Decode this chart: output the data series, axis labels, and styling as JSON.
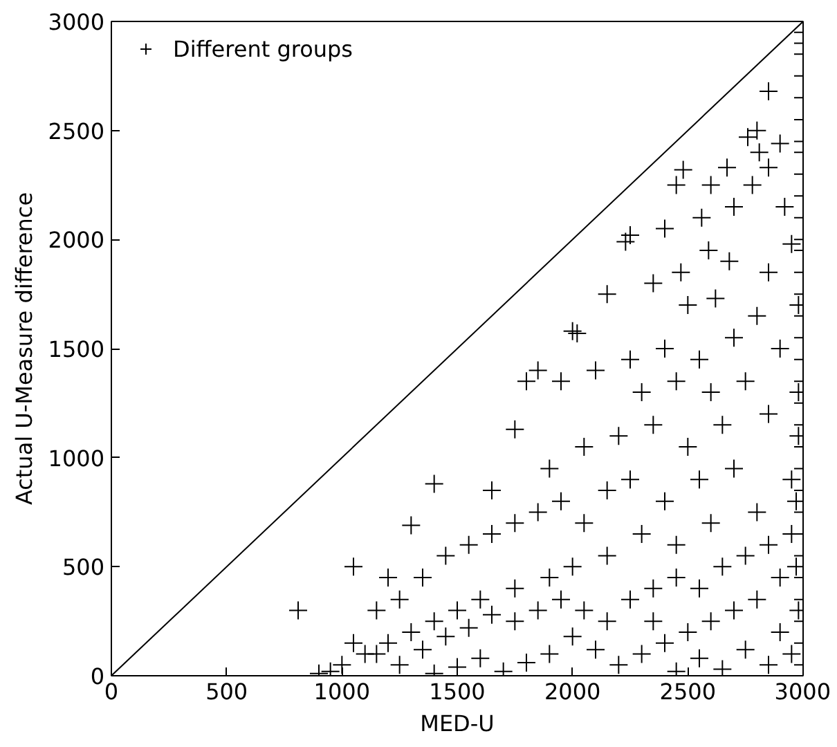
{
  "chart_data": {
    "type": "scatter",
    "xlabel": "MED-U",
    "ylabel": "Actual U-Measure difference",
    "xlim": [
      0,
      3000
    ],
    "ylim": [
      0,
      3000
    ],
    "xticks": [
      0,
      500,
      1000,
      1500,
      2000,
      2500,
      3000
    ],
    "yticks": [
      0,
      500,
      1000,
      1500,
      2000,
      2500,
      3000
    ],
    "grid": false,
    "legend": "top left",
    "series": [
      {
        "name": "Different groups",
        "color": "#000000",
        "marker": "cross",
        "x": [
          3000,
          3000,
          3000,
          3000,
          3000,
          3000,
          3000,
          3000,
          3000,
          3000,
          3000,
          3000,
          3000,
          3000,
          3000,
          3000,
          3000,
          3000,
          3000,
          3000,
          3000,
          3000,
          3000,
          3000,
          3000,
          3000,
          3000,
          3000,
          3000,
          3000,
          3000,
          3000,
          2850,
          2800,
          2760,
          2810,
          2850,
          2900,
          2670,
          2480,
          2600,
          2780,
          2700,
          2250,
          2230,
          2400,
          2450,
          2560,
          2920,
          2950,
          2590,
          2470,
          2680,
          2850,
          2350,
          2500,
          2620,
          2800,
          2150,
          2000,
          2020,
          1750,
          1800,
          1850,
          1950,
          2100,
          2250,
          2400,
          2550,
          2700,
          2900,
          2300,
          2450,
          2600,
          2750,
          1400,
          1300,
          1650,
          1900,
          2050,
          2200,
          2350,
          2500,
          2650,
          2850,
          1050,
          1200,
          1150,
          1250,
          1350,
          1450,
          1550,
          1650,
          1750,
          1850,
          1950,
          2050,
          2150,
          2250,
          2400,
          2550,
          2700,
          2950,
          2800,
          2600,
          2450,
          2300,
          2150,
          2000,
          1900,
          1750,
          1600,
          1500,
          1400,
          1300,
          1200,
          1100,
          1000,
          950,
          900,
          1050,
          1150,
          1250,
          1350,
          1450,
          1550,
          1650,
          1750,
          1850,
          1950,
          2050,
          2150,
          2250,
          2350,
          2450,
          2550,
          2650,
          2750,
          2850,
          2950,
          2900,
          2800,
          2700,
          2600,
          2500,
          2400,
          2300,
          2200,
          2100,
          2000,
          1900,
          1800,
          1700,
          1600,
          1500,
          1400,
          2900,
          2950,
          2850,
          2750,
          2650,
          2550,
          2450,
          2350,
          2980,
          2980,
          2980,
          2970,
          2970,
          2980,
          810
        ],
        "values": [
          2950,
          2900,
          2850,
          2750,
          2650,
          2550,
          2450,
          2400,
          2300,
          2200,
          2100,
          2000,
          1950,
          1850,
          1750,
          1650,
          1550,
          1450,
          1350,
          1250,
          1150,
          1050,
          950,
          850,
          750,
          650,
          550,
          450,
          350,
          250,
          150,
          50,
          2680,
          2500,
          2470,
          2400,
          2330,
          2440,
          2330,
          2320,
          2250,
          2250,
          2150,
          2020,
          1990,
          2050,
          2250,
          2100,
          2150,
          1980,
          1950,
          1850,
          1900,
          1850,
          1800,
          1700,
          1730,
          1650,
          1750,
          1580,
          1570,
          1130,
          1350,
          1400,
          1350,
          1400,
          1450,
          1500,
          1450,
          1550,
          1500,
          1300,
          1350,
          1300,
          1350,
          880,
          690,
          850,
          950,
          1050,
          1100,
          1150,
          1050,
          1150,
          1200,
          500,
          450,
          300,
          350,
          450,
          550,
          600,
          650,
          700,
          750,
          800,
          700,
          850,
          900,
          800,
          900,
          950,
          900,
          750,
          700,
          600,
          650,
          550,
          500,
          450,
          400,
          350,
          300,
          250,
          200,
          150,
          100,
          50,
          20,
          10,
          150,
          100,
          50,
          120,
          180,
          220,
          280,
          250,
          300,
          350,
          300,
          250,
          350,
          400,
          450,
          400,
          500,
          550,
          600,
          650,
          450,
          350,
          300,
          250,
          200,
          150,
          100,
          50,
          120,
          180,
          100,
          60,
          20,
          80,
          40,
          10,
          200,
          100,
          50,
          120,
          30,
          80,
          20,
          250,
          1700,
          1300,
          1100,
          800,
          500,
          300,
          300
        ]
      },
      {
        "color": "#000000",
        "type": "line",
        "x": [
          0,
          3000
        ],
        "values": [
          0,
          3000
        ]
      }
    ]
  }
}
